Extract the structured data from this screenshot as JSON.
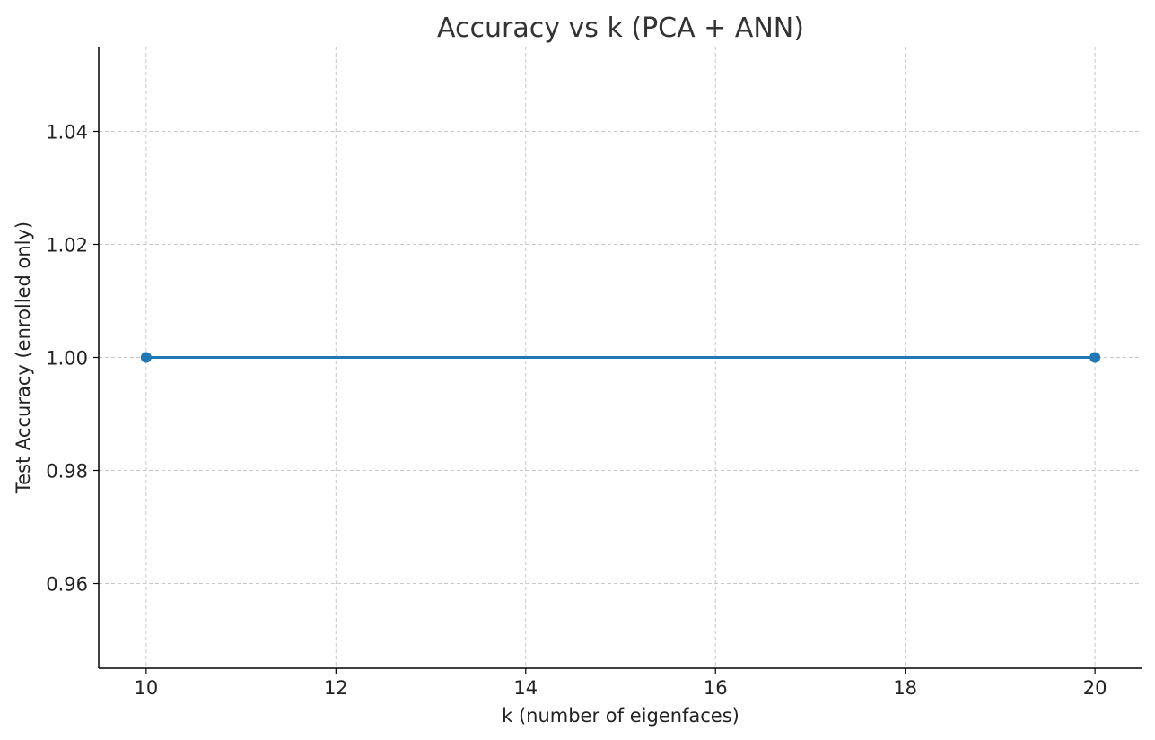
{
  "chart_data": {
    "type": "line",
    "title": "Accuracy vs k (PCA + ANN)",
    "xlabel": "k (number of eigenfaces)",
    "ylabel": "Test Accuracy (enrolled only)",
    "xlim": [
      9.5,
      20.5
    ],
    "ylim": [
      0.945,
      1.055
    ],
    "x_ticks": [
      10,
      12,
      14,
      16,
      18,
      20
    ],
    "x_tick_labels": [
      "10",
      "12",
      "14",
      "16",
      "18",
      "20"
    ],
    "y_ticks": [
      0.96,
      0.98,
      1.0,
      1.02,
      1.04
    ],
    "y_tick_labels": [
      "0.96",
      "0.98",
      "1.00",
      "1.02",
      "1.04"
    ],
    "grid": true,
    "series": [
      {
        "x": [
          10,
          20
        ],
        "y": [
          1.0,
          1.0
        ],
        "color": "#1f77b4",
        "marker": "circle"
      }
    ]
  },
  "colors": {
    "grid": "#c8c8c8",
    "axis": "#000000",
    "line": "#1f77b4"
  }
}
